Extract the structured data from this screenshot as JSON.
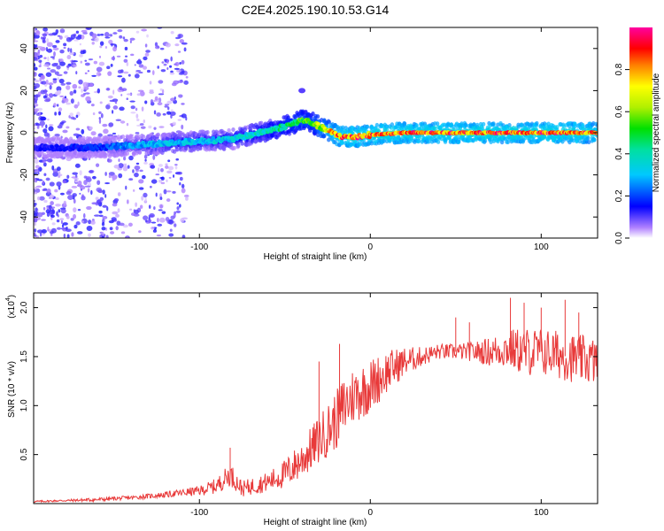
{
  "figure_title": "C2E4.2025.190.10.53.G14",
  "chart_data": [
    {
      "type": "heatmap",
      "title": "C2E4.2025.190.10.53.G14",
      "xlabel": "Height of straight line (km)",
      "ylabel": "Frequency (Hz)",
      "xlim": [
        -197,
        133
      ],
      "ylim": [
        -50,
        50
      ],
      "xticks": [
        -100,
        0,
        100
      ],
      "yticks": [
        -40,
        -20,
        0,
        20,
        40
      ],
      "colorbar": {
        "label": "Normalized spectral amplitude",
        "range": [
          0,
          1
        ],
        "ticks": [
          0.0,
          0.2,
          0.4,
          0.6,
          0.8
        ]
      },
      "ridge": {
        "name": "",
        "x": [
          -197,
          -160,
          -140,
          -120,
          -100,
          -80,
          -70,
          -60,
          -50,
          -40,
          -35,
          -30,
          -25,
          -20,
          -15,
          -10,
          0,
          20,
          40,
          60,
          80,
          100,
          120,
          133
        ],
        "y": [
          -7,
          -7,
          -6,
          -5,
          -4,
          -3,
          -1,
          1,
          3,
          6,
          5,
          3,
          1,
          -1,
          -2,
          -2,
          -1,
          0,
          0,
          0,
          0,
          0,
          0,
          0
        ],
        "amplitude": [
          0.15,
          0.2,
          0.3,
          0.35,
          0.35,
          0.38,
          0.4,
          0.45,
          0.5,
          0.6,
          0.55,
          0.7,
          0.8,
          0.9,
          0.95,
          0.95,
          0.95,
          0.95,
          0.95,
          0.95,
          0.95,
          0.95,
          0.95,
          0.9
        ]
      },
      "annotation": {
        "x": -40,
        "y": 20
      }
    },
    {
      "type": "line",
      "xlabel": "Height of straight line (km)",
      "ylabel": "SNR (10 * v/v)",
      "y_multiplier": "(x10^4)",
      "y_multiplier_base": "(x10",
      "y_multiplier_exp": "4",
      "y_multiplier_close": ")",
      "xlim": [
        -197,
        133
      ],
      "ylim": [
        0,
        2.15
      ],
      "xticks": [
        -100,
        0,
        100
      ],
      "yticks": [
        0.5,
        1.0,
        1.5,
        2.0
      ],
      "line_color": "#e83a3a",
      "series": [
        {
          "x": [
            -197,
            -180,
            -160,
            -140,
            -120,
            -100,
            -90,
            -82,
            -75,
            -60,
            -50,
            -40,
            -30,
            -20,
            -15,
            -10,
            0,
            10,
            20,
            30,
            40,
            50,
            60,
            70,
            80,
            90,
            100,
            110,
            120,
            133
          ],
          "values": [
            0.02,
            0.03,
            0.04,
            0.06,
            0.09,
            0.13,
            0.18,
            0.3,
            0.15,
            0.22,
            0.3,
            0.45,
            0.65,
            0.85,
            1.0,
            1.1,
            1.2,
            1.35,
            1.45,
            1.5,
            1.55,
            1.55,
            1.55,
            1.55,
            1.58,
            1.55,
            1.55,
            1.52,
            1.48,
            1.45
          ]
        }
      ],
      "noise_amplitude": [
        0.01,
        0.01,
        0.02,
        0.02,
        0.03,
        0.05,
        0.08,
        0.12,
        0.08,
        0.1,
        0.15,
        0.2,
        0.25,
        0.3,
        0.32,
        0.3,
        0.28,
        0.22,
        0.15,
        0.1,
        0.08,
        0.08,
        0.1,
        0.15,
        0.2,
        0.25,
        0.25,
        0.25,
        0.25,
        0.25
      ],
      "spikes": [
        [
          -82,
          0.57
        ],
        [
          -30,
          1.45
        ],
        [
          -18,
          1.63
        ],
        [
          50,
          1.9
        ],
        [
          58,
          1.85
        ],
        [
          82,
          2.1
        ],
        [
          90,
          2.05
        ],
        [
          100,
          2.0
        ],
        [
          114,
          2.08
        ],
        [
          122,
          1.95
        ]
      ]
    }
  ]
}
